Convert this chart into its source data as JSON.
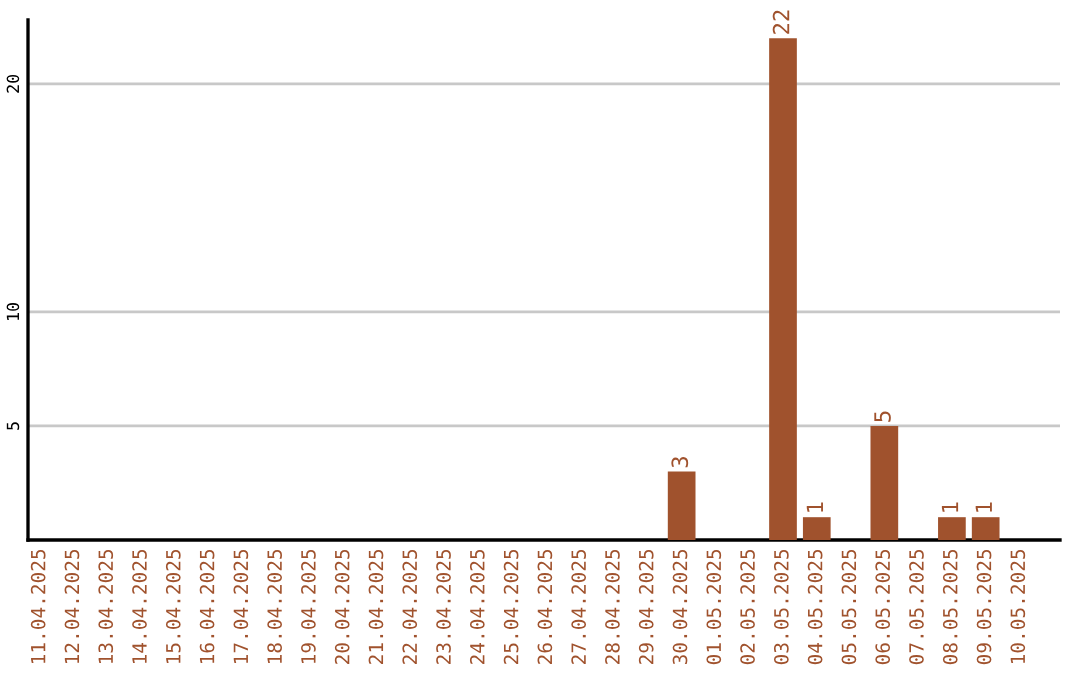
{
  "chart_data": {
    "type": "bar",
    "categories": [
      "11.04.2025",
      "12.04.2025",
      "13.04.2025",
      "14.04.2025",
      "15.04.2025",
      "16.04.2025",
      "17.04.2025",
      "18.04.2025",
      "19.04.2025",
      "20.04.2025",
      "21.04.2025",
      "22.04.2025",
      "23.04.2025",
      "24.04.2025",
      "25.04.2025",
      "26.04.2025",
      "27.04.2025",
      "28.04.2025",
      "29.04.2025",
      "30.04.2025",
      "01.05.2025",
      "02.05.2025",
      "03.05.2025",
      "04.05.2025",
      "05.05.2025",
      "06.05.2025",
      "07.05.2025",
      "08.05.2025",
      "09.05.2025",
      "10.05.2025"
    ],
    "values": [
      0,
      0,
      0,
      0,
      0,
      0,
      0,
      0,
      0,
      0,
      0,
      0,
      0,
      0,
      0,
      0,
      0,
      0,
      0,
      3,
      0,
      0,
      22,
      1,
      0,
      5,
      0,
      1,
      1,
      0
    ],
    "value_labels": [
      null,
      null,
      null,
      null,
      null,
      null,
      null,
      null,
      null,
      null,
      null,
      null,
      null,
      null,
      null,
      null,
      null,
      null,
      null,
      "3",
      null,
      null,
      "22",
      "1",
      null,
      "5",
      null,
      "1",
      "1",
      null
    ],
    "color": "#a0522d",
    "ylim": [
      0,
      22.8
    ],
    "yticks": [
      5,
      10,
      20
    ],
    "grid": "y"
  }
}
